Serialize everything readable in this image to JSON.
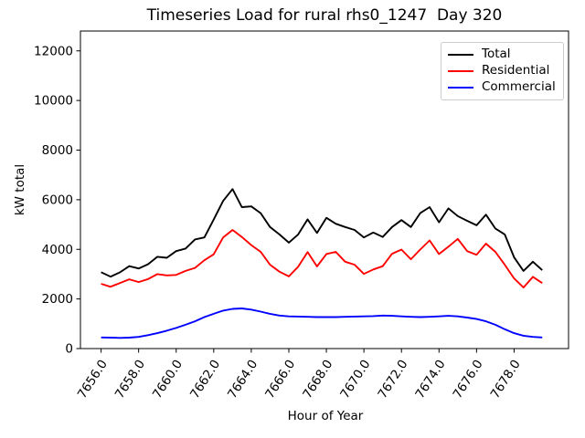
{
  "chart_data": {
    "type": "line",
    "title": "Timeseries Load for rural rhs0_1247  Day 320",
    "xlabel": "Hour of Year",
    "ylabel": "kW total",
    "grid": false,
    "legend_position": "upper right",
    "xlim": [
      7654.9,
      7680.9
    ],
    "ylim": [
      0,
      12800
    ],
    "xticks": [
      7656,
      7658,
      7660,
      7662,
      7664,
      7666,
      7668,
      7670,
      7672,
      7674,
      7676,
      7678
    ],
    "xtick_labels": [
      "7656.0",
      "7658.0",
      "7660.0",
      "7662.0",
      "7664.0",
      "7666.0",
      "7668.0",
      "7670.0",
      "7672.0",
      "7674.0",
      "7676.0",
      "7678.0"
    ],
    "yticks": [
      0,
      2000,
      4000,
      6000,
      8000,
      10000,
      12000
    ],
    "ytick_labels": [
      "0",
      "2000",
      "4000",
      "6000",
      "8000",
      "10000",
      "12000"
    ],
    "x": [
      7656.0,
      7656.5,
      7657.0,
      7657.5,
      7658.0,
      7658.5,
      7659.0,
      7659.5,
      7660.0,
      7660.5,
      7661.0,
      7661.5,
      7662.0,
      7662.5,
      7663.0,
      7663.5,
      7664.0,
      7664.5,
      7665.0,
      7665.5,
      7666.0,
      7666.5,
      7667.0,
      7667.5,
      7668.0,
      7668.5,
      7669.0,
      7669.5,
      7670.0,
      7670.5,
      7671.0,
      7671.5,
      7672.0,
      7672.5,
      7673.0,
      7673.5,
      7674.0,
      7674.5,
      7675.0,
      7675.5,
      7676.0,
      7676.5,
      7677.0,
      7677.5,
      7678.0,
      7678.5,
      7679.0,
      7679.5
    ],
    "series": [
      {
        "name": "Total",
        "color": "#000000",
        "values": [
          3080,
          2900,
          3070,
          3320,
          3230,
          3400,
          3700,
          3660,
          3930,
          4030,
          4400,
          4480,
          5200,
          5950,
          6430,
          5700,
          5730,
          5460,
          4900,
          4600,
          4270,
          4600,
          5210,
          4660,
          5270,
          5030,
          4900,
          4780,
          4480,
          4680,
          4500,
          4900,
          5180,
          4900,
          5460,
          5700,
          5090,
          5650,
          5340,
          5150,
          4970,
          5400,
          4840,
          4600,
          3680,
          3130,
          3500,
          3160
        ]
      },
      {
        "name": "Residential",
        "color": "#ff0000",
        "values": [
          2610,
          2490,
          2640,
          2790,
          2680,
          2800,
          3000,
          2950,
          2970,
          3130,
          3250,
          3560,
          3800,
          4480,
          4780,
          4500,
          4170,
          3900,
          3380,
          3100,
          2910,
          3300,
          3890,
          3310,
          3810,
          3900,
          3500,
          3380,
          3010,
          3190,
          3320,
          3820,
          3990,
          3600,
          3990,
          4360,
          3810,
          4110,
          4420,
          3930,
          3780,
          4230,
          3900,
          3380,
          2830,
          2460,
          2890,
          2640
        ]
      },
      {
        "name": "Commercial",
        "color": "#0000ff",
        "values": [
          450,
          440,
          430,
          440,
          470,
          540,
          620,
          720,
          830,
          960,
          1100,
          1270,
          1400,
          1530,
          1600,
          1620,
          1570,
          1490,
          1400,
          1330,
          1300,
          1290,
          1280,
          1270,
          1270,
          1270,
          1280,
          1290,
          1300,
          1310,
          1330,
          1320,
          1300,
          1280,
          1270,
          1280,
          1300,
          1320,
          1300,
          1250,
          1190,
          1100,
          960,
          780,
          620,
          520,
          470,
          450
        ]
      }
    ]
  }
}
